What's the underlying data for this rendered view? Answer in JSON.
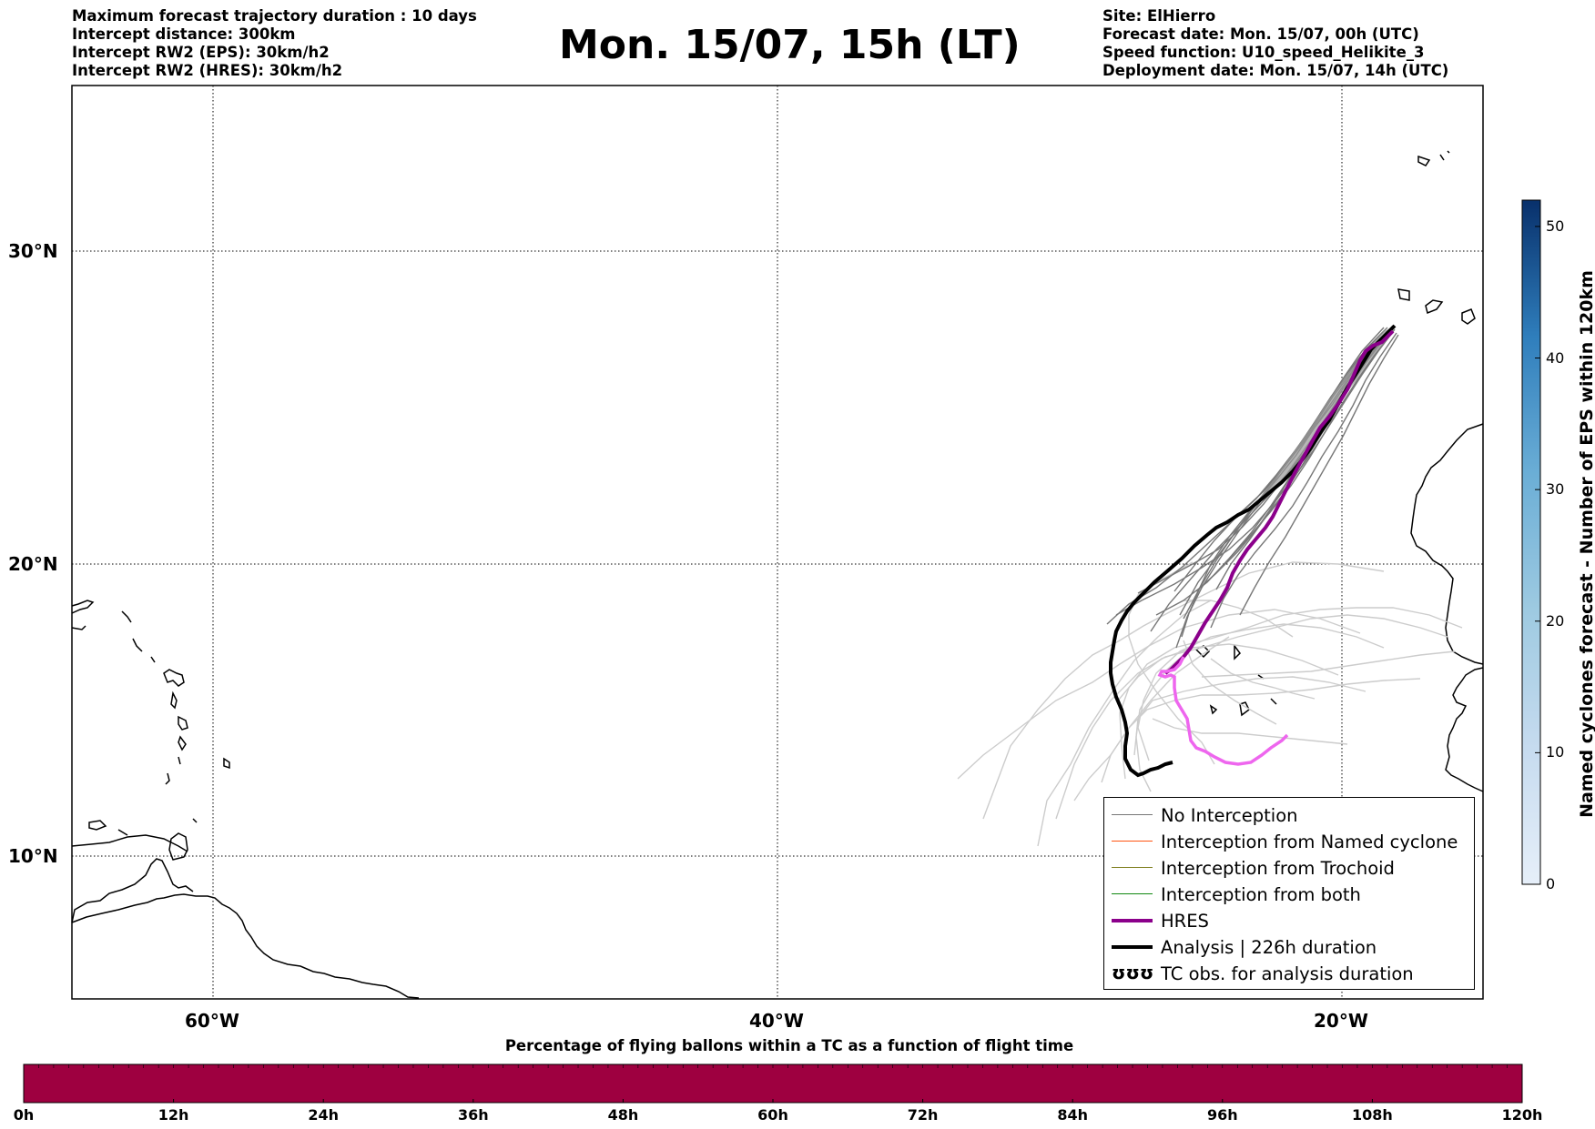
{
  "header": {
    "left_lines": [
      "Maximum forecast trajectory duration : 10 days",
      "Intercept distance: 300km",
      "Intercept RW2 (EPS):  30km/h2",
      "Intercept RW2 (HRES): 30km/h2"
    ],
    "title": "Mon. 15/07, 15h (LT)",
    "right_lines": [
      "Site: ElHierro",
      "Forecast date: Mon. 15/07, 00h (UTC)",
      "Speed function: U10_speed_Helikite_3",
      "Deployment date: Mon. 15/07, 14h (UTC)"
    ]
  },
  "map": {
    "lat_labels": [
      "30°N",
      "20°N",
      "10°N"
    ],
    "lon_labels": [
      "60°W",
      "40°W",
      "20°W"
    ],
    "grid": "dotted",
    "colors": {
      "no_interception": "#777777",
      "ensemble_light": "#cccccc",
      "named_cyclone": "#ff5511",
      "trochoid": "#808020",
      "both": "#118811",
      "hres": "#8b008b",
      "hres_tail": "#ee66ee",
      "analysis": "#000000"
    }
  },
  "legend": {
    "items": [
      {
        "label": "No Interception",
        "color": "#777777",
        "width": 1.5,
        "kind": "line"
      },
      {
        "label": "Interception from Named cyclone",
        "color": "#ff5511",
        "width": 1.5,
        "kind": "line"
      },
      {
        "label": "Interception from Trochoid",
        "color": "#808020",
        "width": 1.5,
        "kind": "line"
      },
      {
        "label": "Interception from both",
        "color": "#118811",
        "width": 1.5,
        "kind": "line"
      },
      {
        "label": "HRES",
        "color": "#8b008b",
        "width": 4,
        "kind": "line"
      },
      {
        "label": "Analysis | 226h duration",
        "color": "#000000",
        "width": 4,
        "kind": "line"
      },
      {
        "label": "TC obs. for analysis duration",
        "color": "#000000",
        "width": 1,
        "kind": "symbol",
        "symbol": "ʊʊʊ"
      }
    ]
  },
  "colorbar": {
    "label": "Named cyclones forecast - Number of EPS within 120km",
    "ticks": [
      "0",
      "10",
      "20",
      "30",
      "40",
      "50"
    ],
    "range": [
      0,
      52
    ],
    "color_low": "#e6eff9",
    "color_high": "#08306b"
  },
  "percentage_bar": {
    "title": "Percentage of flying ballons within a TC as a function of flight time",
    "ticks": [
      "0h",
      "12h",
      "24h",
      "36h",
      "48h",
      "60h",
      "72h",
      "84h",
      "96h",
      "108h",
      "120h"
    ],
    "fill_color": "#9e0040",
    "value_percent_all": 0
  }
}
